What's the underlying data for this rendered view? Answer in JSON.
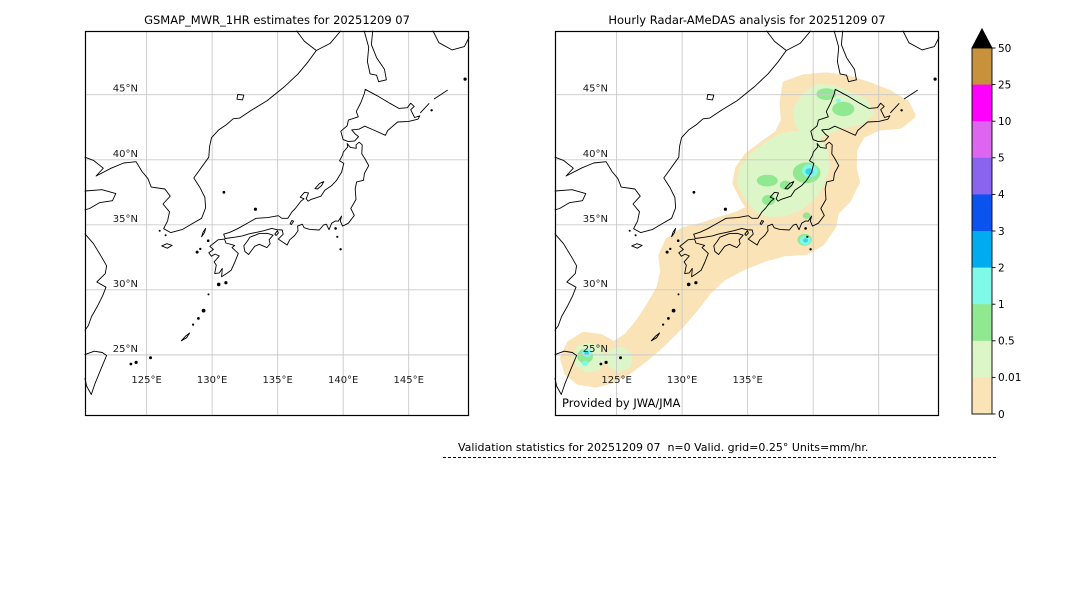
{
  "panels": {
    "left": {
      "title": "GSMAP_MWR_1HR estimates for 20251209 07",
      "lat_labels": [
        "45°N",
        "40°N",
        "35°N",
        "30°N",
        "25°N"
      ],
      "lon_labels": [
        "125°E",
        "130°E",
        "135°E",
        "140°E",
        "145°E"
      ]
    },
    "right": {
      "title": "Hourly Radar-AMeDAS analysis for 20251209 07",
      "credit": "Provided by JWA/JMA",
      "lat_labels": [
        "45°N",
        "40°N",
        "35°N",
        "30°N",
        "25°N"
      ],
      "lon_labels": [
        "125°E",
        "130°E",
        "135°E"
      ]
    }
  },
  "caption": {
    "text": "Validation statistics for 20251209 07  n=0 Valid. grid=0.25° Units=mm/hr."
  },
  "colorbar": {
    "tick_labels": [
      "50",
      "25",
      "10",
      "5",
      "4",
      "3",
      "2",
      "1",
      "0.5",
      "0.01",
      "0"
    ],
    "overflow_color": "#000000",
    "segments_top_to_bottom": [
      {
        "range": "25-50",
        "color": "#C8923C"
      },
      {
        "range": "10-25",
        "color": "#FF00FF"
      },
      {
        "range": "5-10",
        "color": "#DE65EF"
      },
      {
        "range": "4-5",
        "color": "#8A64EF"
      },
      {
        "range": "3-4",
        "color": "#0B53EE"
      },
      {
        "range": "2-3",
        "color": "#00ACF0"
      },
      {
        "range": "1-2",
        "color": "#80FAE8"
      },
      {
        "range": "0.5-1",
        "color": "#90E890"
      },
      {
        "range": "0.01-0.5",
        "color": "#DDF6C8"
      },
      {
        "range": "0-0.01",
        "color": "#FAE3B6"
      }
    ]
  },
  "chart_data": {
    "type": "map",
    "projection": "equirectangular",
    "units": "mm/hr",
    "levels_mm_per_hr": [
      0,
      0.01,
      0.5,
      1,
      2,
      3,
      4,
      5,
      10,
      25,
      50
    ],
    "extent": {
      "lon_min": 120.3,
      "lon_max": 149.6,
      "lat_min": 20.3,
      "lat_max": 49.9
    },
    "gridlines": {
      "lons": [
        125,
        130,
        135,
        140,
        145
      ],
      "lats": [
        25,
        30,
        35,
        40,
        45
      ]
    },
    "left_map_precip_regions": [],
    "right_map_precip_regions": [
      {
        "level": "0-0.01",
        "color": "#FAE3B6",
        "polygon": [
          [
            137.9,
            45.8
          ],
          [
            139.3,
            46.3
          ],
          [
            141.0,
            46.45
          ],
          [
            142.7,
            46.2
          ],
          [
            144.3,
            45.7
          ],
          [
            145.8,
            45.1
          ],
          [
            147.1,
            44.3
          ],
          [
            147.55,
            43.4
          ],
          [
            146.6,
            42.65
          ],
          [
            145.0,
            42.5
          ],
          [
            143.7,
            41.9
          ],
          [
            143.1,
            40.8
          ],
          [
            143.05,
            39.4
          ],
          [
            143.3,
            38.3
          ],
          [
            142.6,
            36.9
          ],
          [
            141.7,
            36.0
          ],
          [
            141.5,
            34.9
          ],
          [
            140.6,
            33.6
          ],
          [
            139.4,
            32.95
          ],
          [
            137.8,
            32.85
          ],
          [
            136.2,
            32.4
          ],
          [
            134.6,
            31.75
          ],
          [
            133.1,
            30.95
          ],
          [
            132.0,
            29.9
          ],
          [
            131.0,
            28.6
          ],
          [
            129.8,
            27.2
          ],
          [
            128.5,
            25.9
          ],
          [
            127.2,
            24.75
          ],
          [
            125.95,
            23.8
          ],
          [
            124.7,
            23.1
          ],
          [
            123.4,
            22.75
          ],
          [
            122.15,
            22.95
          ],
          [
            121.25,
            23.65
          ],
          [
            120.95,
            24.75
          ],
          [
            121.45,
            25.85
          ],
          [
            122.5,
            26.5
          ],
          [
            123.75,
            26.35
          ],
          [
            124.8,
            25.75
          ],
          [
            125.8,
            26.4
          ],
          [
            126.7,
            27.5
          ],
          [
            127.55,
            28.8
          ],
          [
            128.3,
            30.1
          ],
          [
            128.6,
            31.4
          ],
          [
            128.45,
            32.6
          ],
          [
            128.95,
            33.75
          ],
          [
            130.1,
            34.55
          ],
          [
            131.5,
            34.9
          ],
          [
            132.9,
            35.35
          ],
          [
            134.2,
            35.75
          ],
          [
            135.2,
            36.25
          ],
          [
            134.6,
            37.2
          ],
          [
            134.1,
            38.2
          ],
          [
            134.3,
            39.3
          ],
          [
            135.0,
            40.3
          ],
          [
            136.2,
            41.2
          ],
          [
            137.3,
            42.0
          ],
          [
            137.8,
            43.0
          ],
          [
            137.7,
            44.3
          ]
        ]
      },
      {
        "level": "0.01-0.5",
        "color": "#DDF6C8",
        "polygon": [
          [
            139.4,
            44.9
          ],
          [
            140.3,
            45.55
          ],
          [
            141.5,
            45.5
          ],
          [
            142.7,
            45.0
          ],
          [
            143.9,
            44.45
          ],
          [
            144.35,
            43.6
          ],
          [
            143.6,
            42.95
          ],
          [
            142.4,
            42.75
          ],
          [
            141.3,
            42.3
          ],
          [
            140.3,
            41.95
          ],
          [
            139.4,
            42.05
          ],
          [
            138.85,
            42.8
          ],
          [
            138.75,
            43.9
          ]
        ]
      },
      {
        "level": "0.01-0.5",
        "color": "#DDF6C8",
        "polygon": [
          [
            137.4,
            41.7
          ],
          [
            138.5,
            41.95
          ],
          [
            139.6,
            41.9
          ],
          [
            140.3,
            41.5
          ],
          [
            140.85,
            40.6
          ],
          [
            140.95,
            39.4
          ],
          [
            140.6,
            38.2
          ],
          [
            139.95,
            37.2
          ],
          [
            139.0,
            36.4
          ],
          [
            137.9,
            35.95
          ],
          [
            136.7,
            35.85
          ],
          [
            135.9,
            36.1
          ],
          [
            135.5,
            36.5
          ],
          [
            134.9,
            37.3
          ],
          [
            134.45,
            38.25
          ],
          [
            134.6,
            39.25
          ],
          [
            135.3,
            40.15
          ],
          [
            136.35,
            41.0
          ]
        ]
      },
      {
        "level": "0.01-0.5",
        "color": "#DDF6C8",
        "polygon": [
          [
            122.15,
            25.45
          ],
          [
            122.9,
            25.7
          ],
          [
            123.6,
            25.45
          ],
          [
            123.9,
            24.8
          ],
          [
            123.55,
            24.1
          ],
          [
            122.75,
            23.9
          ],
          [
            122.1,
            24.3
          ],
          [
            122.0,
            24.9
          ]
        ]
      },
      {
        "level": "0.01-0.5",
        "color": "#DDF6C8",
        "polygon": [
          [
            124.65,
            25.2
          ],
          [
            125.4,
            25.35
          ],
          [
            125.95,
            24.9
          ],
          [
            125.85,
            24.2
          ],
          [
            125.1,
            23.95
          ],
          [
            124.5,
            24.35
          ],
          [
            124.45,
            24.85
          ]
        ]
      },
      {
        "level": "0.5-1",
        "color": "#90E890",
        "ellipse": [
          141.0,
          45.05,
          0.75,
          0.45
        ]
      },
      {
        "level": "0.5-1",
        "color": "#90E890",
        "ellipse": [
          142.3,
          43.9,
          0.85,
          0.55
        ]
      },
      {
        "level": "0.5-1",
        "color": "#90E890",
        "ellipse": [
          139.5,
          39.0,
          1.05,
          0.8
        ]
      },
      {
        "level": "0.5-1",
        "color": "#90E890",
        "ellipse": [
          136.5,
          38.4,
          0.8,
          0.45
        ]
      },
      {
        "level": "0.5-1",
        "color": "#90E890",
        "ellipse": [
          137.9,
          38.05,
          0.45,
          0.35
        ]
      },
      {
        "level": "0.5-1",
        "color": "#90E890",
        "ellipse": [
          136.6,
          36.9,
          0.5,
          0.4
        ]
      },
      {
        "level": "0.5-1",
        "color": "#90E890",
        "ellipse": [
          139.5,
          35.7,
          0.3,
          0.25
        ]
      },
      {
        "level": "0.5-1",
        "color": "#90E890",
        "ellipse": [
          139.35,
          33.85,
          0.55,
          0.45
        ]
      },
      {
        "level": "0.5-1",
        "color": "#90E890",
        "ellipse": [
          122.6,
          24.9,
          0.6,
          0.55
        ]
      },
      {
        "level": "1-2",
        "color": "#80FAE8",
        "ellipse": [
          139.75,
          39.15,
          0.6,
          0.5
        ]
      },
      {
        "level": "1-2",
        "color": "#80FAE8",
        "ellipse": [
          139.4,
          33.8,
          0.42,
          0.35
        ]
      },
      {
        "level": "1-2",
        "color": "#80FAE8",
        "ellipse": [
          122.75,
          25.15,
          0.4,
          0.32
        ]
      },
      {
        "level": "1-2",
        "color": "#80FAE8",
        "ellipse": [
          122.6,
          24.35,
          0.25,
          0.2
        ]
      },
      {
        "level": "1-2",
        "color": "#80FAE8",
        "ellipse": [
          141.9,
          44.55,
          0.2,
          0.15
        ]
      },
      {
        "level": "2-3",
        "color": "#35D3EC",
        "ellipse": [
          139.7,
          39.1,
          0.3,
          0.25
        ]
      },
      {
        "level": "2-3",
        "color": "#35D3EC",
        "ellipse": [
          139.42,
          33.8,
          0.18,
          0.15
        ]
      },
      {
        "level": "2-3",
        "color": "#35D3EC",
        "ellipse": [
          122.72,
          25.12,
          0.18,
          0.15
        ]
      }
    ]
  }
}
